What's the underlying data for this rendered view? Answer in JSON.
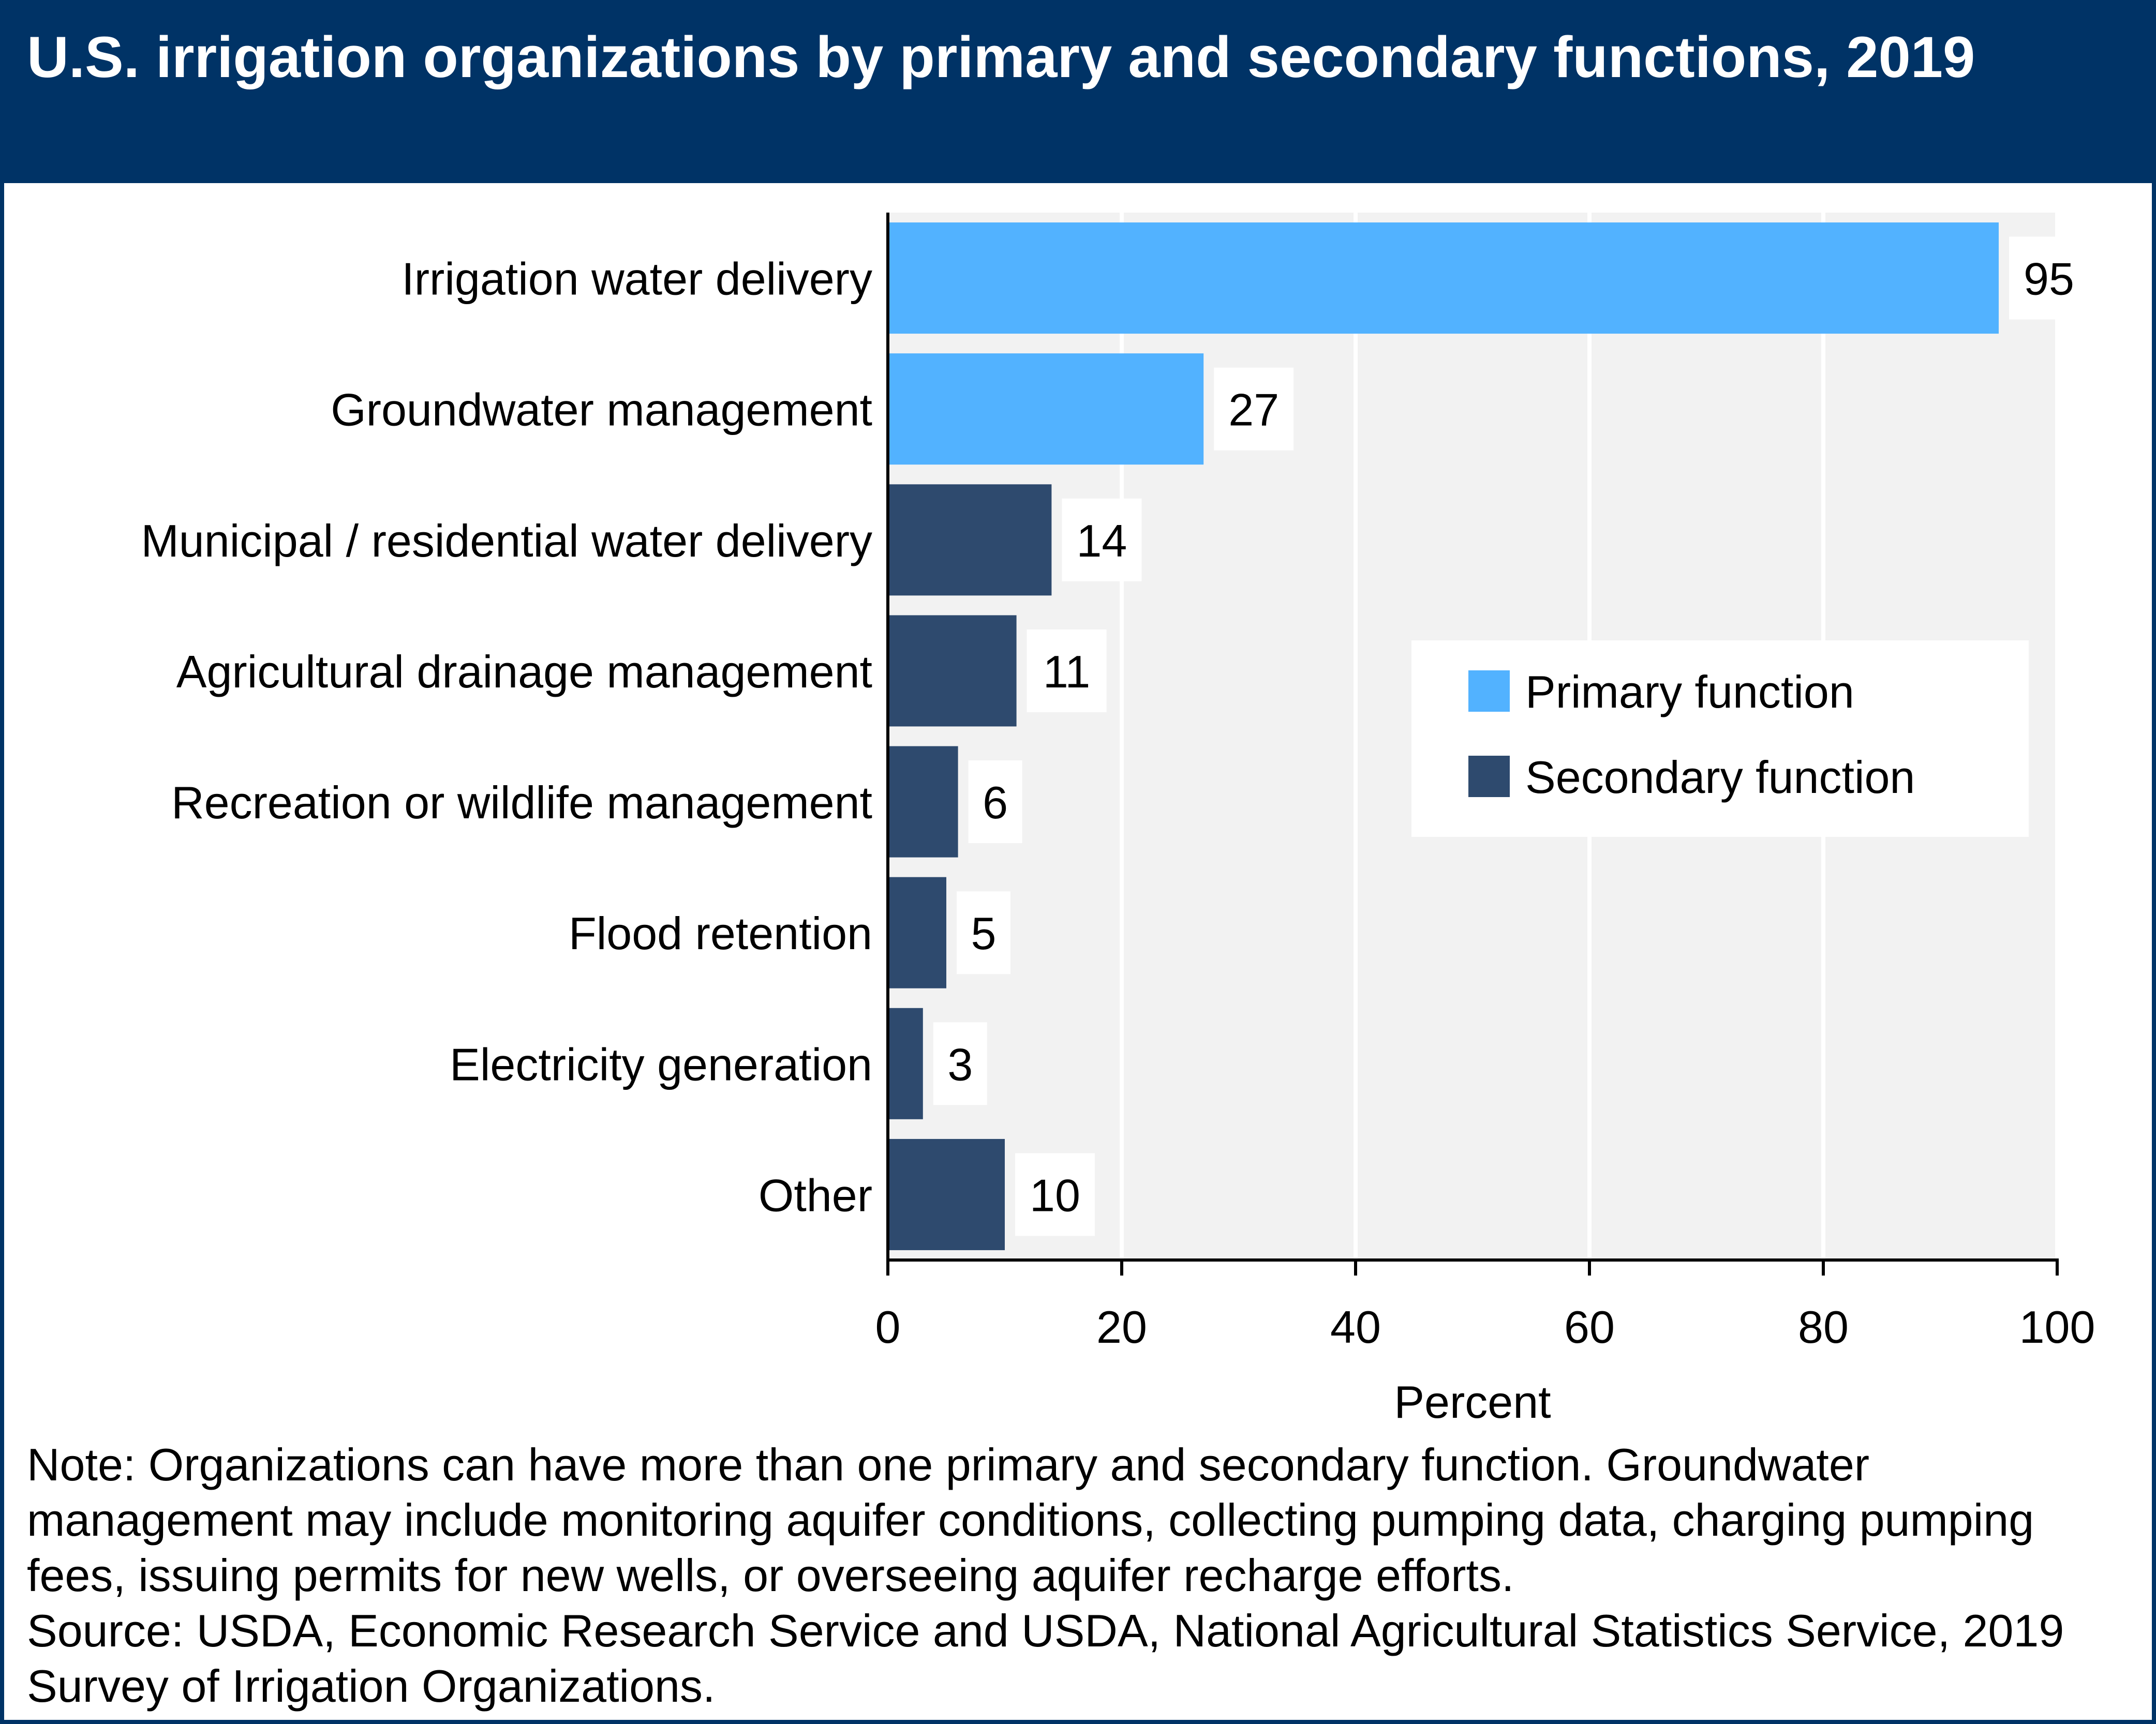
{
  "title": "U.S. irrigation organizations by primary and secondary functions, 2019",
  "colors": {
    "header_background": "#003366",
    "primary": "#52b2ff",
    "secondary": "#2e4a6e",
    "plot_background": "#f2f2f2",
    "gridline": "#ffffff"
  },
  "chart_data": {
    "type": "bar",
    "orientation": "horizontal",
    "categories": [
      "Irrigation water delivery",
      "Groundwater management",
      "Municipal / residential water delivery",
      "Agricultural drainage management",
      "Recreation or wildlife management",
      "Flood retention",
      "Electricity generation",
      "Other"
    ],
    "values": [
      95,
      27,
      14,
      11,
      6,
      5,
      3,
      10
    ],
    "function_type": [
      "primary",
      "primary",
      "secondary",
      "secondary",
      "secondary",
      "secondary",
      "secondary",
      "secondary"
    ],
    "series": [
      {
        "name": "Primary function",
        "key": "primary"
      },
      {
        "name": "Secondary function",
        "key": "secondary"
      }
    ],
    "xlabel": "Percent",
    "ylabel": "",
    "xlim": [
      0,
      100
    ],
    "xticks": [
      0,
      20,
      40,
      60,
      80,
      100
    ],
    "grid": "vertical",
    "legend_position": "right"
  },
  "note": "Note: Organizations can have more than one primary and secondary function. Groundwater management may include monitoring aquifer conditions, collecting pumping data, charging pumping fees, issuing permits for new wells, or overseeing aquifer recharge efforts.",
  "source": "Source: USDA, Economic Research Service and USDA, National Agricultural Statistics Service, 2019 Survey of Irrigation Organizations."
}
